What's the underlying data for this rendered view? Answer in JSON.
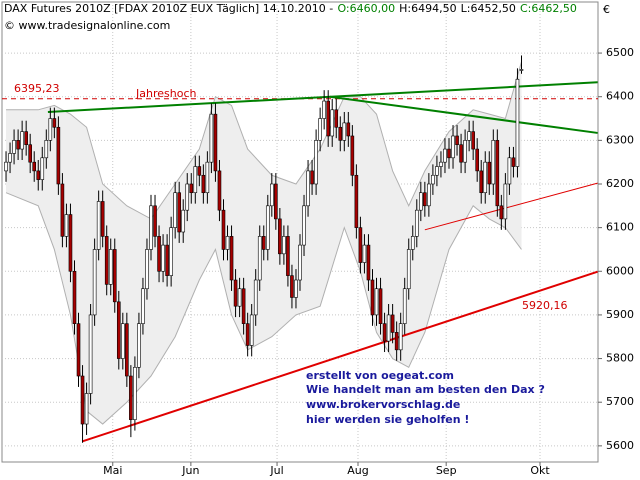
{
  "chart_data": {
    "type": "candlestick",
    "title": "DAX Futures 2010Z [FDAX 2010Z EUX  Täglich] 14.10.2010 -",
    "title_open": "O:6460,00",
    "title_high": "H:6494,50",
    "title_low": "L:6452,50",
    "title_close": "C:6462,50",
    "source": "© www.tradesignalonline.com",
    "currency": "€",
    "xlim": [
      -1,
      147
    ],
    "xticks": [
      {
        "value": 26.5,
        "label": "Mai"
      },
      {
        "value": 45.9,
        "label": "Jun"
      },
      {
        "value": 67.3,
        "label": "Jul"
      },
      {
        "value": 87.4,
        "label": "Aug"
      },
      {
        "value": 109.3,
        "label": "Sep"
      },
      {
        "value": 132.6,
        "label": "Okt"
      }
    ],
    "ylim": [
      5563,
      6617
    ],
    "yticks": [
      5600,
      5700,
      5800,
      5900,
      6000,
      6100,
      6200,
      6300,
      6400,
      6500
    ],
    "grid": true,
    "up_color": "#ffffff",
    "down_color": "#a50000",
    "open": [
      6230,
      6250,
      6270,
      6300,
      6280,
      6320,
      6290,
      6250,
      6230,
      6210,
      6260,
      6300,
      6350,
      6330,
      6200,
      6080,
      6130,
      6000,
      5880,
      5760,
      5650,
      5720,
      5900,
      6050,
      6160,
      6080,
      5970,
      6050,
      5930,
      5800,
      5880,
      5760,
      5660,
      5780,
      5880,
      5960,
      6050,
      6150,
      6080,
      6000,
      6060,
      5990,
      6100,
      6180,
      6090,
      6140,
      6200,
      6180,
      6240,
      6220,
      6180,
      6250,
      6360,
      6230,
      6140,
      6050,
      6080,
      5980,
      5920,
      5960,
      5880,
      5830,
      5900,
      5980,
      6080,
      6050,
      6150,
      6200,
      6120,
      6040,
      6080,
      5990,
      5940,
      5980,
      6060,
      6150,
      6230,
      6200,
      6300,
      6350,
      6390,
      6310,
      6370,
      6330,
      6300,
      6340,
      6310,
      6220,
      6100,
      6020,
      6060,
      5980,
      5900,
      5960,
      5880,
      5840,
      5900,
      5860,
      5820,
      5880,
      5960,
      6050,
      6080,
      6140,
      6180,
      6150,
      6200,
      6220,
      6240,
      6250,
      6280,
      6260,
      6310,
      6290,
      6250,
      6300,
      6320,
      6280,
      6230,
      6180,
      6250,
      6200,
      6300,
      6150,
      6120,
      6200,
      6260,
      6240,
      6460
    ],
    "high": [
      6275,
      6295,
      6325,
      6325,
      6345,
      6345,
      6315,
      6275,
      6255,
      6285,
      6325,
      6375,
      6375,
      6355,
      6225,
      6155,
      6155,
      6025,
      5905,
      5785,
      5745,
      5925,
      6075,
      6185,
      6185,
      6105,
      6075,
      6075,
      5955,
      5905,
      5905,
      5785,
      5805,
      5905,
      5985,
      6075,
      6175,
      6175,
      6105,
      6085,
      6085,
      6125,
      6205,
      6205,
      6165,
      6225,
      6225,
      6265,
      6265,
      6245,
      6275,
      6385,
      6385,
      6255,
      6165,
      6105,
      6105,
      6005,
      5985,
      5985,
      5905,
      5925,
      6005,
      6105,
      6105,
      6175,
      6225,
      6225,
      6145,
      6105,
      6105,
      6015,
      6005,
      6085,
      6175,
      6255,
      6255,
      6325,
      6375,
      6415,
      6415,
      6395,
      6395,
      6355,
      6365,
      6365,
      6335,
      6245,
      6125,
      6085,
      6085,
      6005,
      5985,
      5985,
      5905,
      5925,
      5925,
      5885,
      5905,
      5985,
      6075,
      6105,
      6165,
      6205,
      6205,
      6225,
      6245,
      6265,
      6275,
      6305,
      6305,
      6335,
      6335,
      6315,
      6325,
      6345,
      6345,
      6305,
      6255,
      6275,
      6275,
      6325,
      6325,
      6175,
      6225,
      6285,
      6285,
      6465,
      6494.5
    ],
    "low": [
      6205,
      6225,
      6245,
      6255,
      6255,
      6265,
      6225,
      6205,
      6185,
      6185,
      6235,
      6275,
      6305,
      6175,
      6055,
      6055,
      5975,
      5855,
      5735,
      5607,
      5625,
      5695,
      5875,
      6025,
      6055,
      5945,
      5945,
      5905,
      5775,
      5775,
      5735,
      5620,
      5635,
      5755,
      5855,
      5935,
      6025,
      6055,
      5975,
      5975,
      5965,
      5965,
      6075,
      6065,
      6065,
      6115,
      6155,
      6155,
      6195,
      6155,
      6155,
      6225,
      6205,
      6115,
      6025,
      6025,
      5955,
      5895,
      5895,
      5855,
      5805,
      5805,
      5875,
      5955,
      6025,
      6025,
      6125,
      6095,
      6015,
      6015,
      5965,
      5915,
      5915,
      5955,
      6035,
      6125,
      6175,
      6175,
      6275,
      6325,
      6285,
      6285,
      6305,
      6275,
      6275,
      6285,
      6195,
      6075,
      5995,
      5995,
      5955,
      5875,
      5875,
      5855,
      5815,
      5815,
      5835,
      5795,
      5795,
      5855,
      5935,
      6025,
      6055,
      6115,
      6125,
      6125,
      6175,
      6195,
      6215,
      6225,
      6235,
      6235,
      6265,
      6225,
      6225,
      6275,
      6255,
      6205,
      6155,
      6155,
      6175,
      6175,
      6125,
      6095,
      6095,
      6175,
      6215,
      6215,
      6452.5
    ],
    "close": [
      6250,
      6270,
      6300,
      6280,
      6320,
      6290,
      6250,
      6230,
      6210,
      6260,
      6300,
      6350,
      6330,
      6200,
      6080,
      6130,
      6000,
      5880,
      5760,
      5650,
      5720,
      5900,
      6050,
      6160,
      6080,
      5970,
      6050,
      5930,
      5800,
      5880,
      5760,
      5660,
      5780,
      5880,
      5960,
      6050,
      6150,
      6080,
      6000,
      6060,
      5990,
      6100,
      6180,
      6090,
      6140,
      6200,
      6180,
      6240,
      6220,
      6180,
      6250,
      6360,
      6230,
      6140,
      6050,
      6080,
      5980,
      5920,
      5960,
      5880,
      5830,
      5900,
      5980,
      6080,
      6050,
      6150,
      6200,
      6120,
      6040,
      6080,
      5990,
      5940,
      5980,
      6060,
      6150,
      6230,
      6200,
      6300,
      6350,
      6390,
      6310,
      6370,
      6330,
      6300,
      6340,
      6310,
      6220,
      6100,
      6020,
      6060,
      5980,
      5900,
      5960,
      5880,
      5840,
      5900,
      5860,
      5820,
      5880,
      5960,
      6050,
      6080,
      6140,
      6180,
      6150,
      6200,
      6220,
      6240,
      6250,
      6280,
      6260,
      6310,
      6290,
      6250,
      6300,
      6320,
      6280,
      6230,
      6180,
      6250,
      6200,
      6300,
      6150,
      6120,
      6200,
      6260,
      6240,
      6440,
      6462.5
    ],
    "bands": {
      "color": "#b0b0b0",
      "x": [
        0,
        8,
        12,
        16,
        20,
        24,
        30,
        36,
        42,
        48,
        52,
        56,
        60,
        66,
        72,
        78,
        84,
        88,
        92,
        96,
        100,
        104,
        110,
        116,
        120,
        124,
        128
      ],
      "upper": [
        6370,
        6370,
        6380,
        6360,
        6330,
        6200,
        6150,
        6120,
        6200,
        6280,
        6400,
        6380,
        6280,
        6220,
        6200,
        6280,
        6400,
        6400,
        6360,
        6230,
        6150,
        6230,
        6320,
        6370,
        6360,
        6350,
        6480
      ],
      "lower": [
        6180,
        6150,
        6050,
        5900,
        5680,
        5650,
        5700,
        5760,
        5850,
        5980,
        6050,
        5900,
        5820,
        5850,
        5900,
        5920,
        6100,
        6000,
        5860,
        5800,
        5780,
        5860,
        6050,
        6150,
        6120,
        6100,
        6050
      ]
    },
    "trendlines": [
      {
        "color": "#008000",
        "x": [
          10.4,
          146.9
        ],
        "y": [
          6365,
          6433
        ]
      },
      {
        "color": "#008000",
        "x": [
          80.4,
          146.9
        ],
        "y": [
          6400,
          6317
        ]
      },
      {
        "color": "#e00000",
        "x": [
          18.9,
          146.9
        ],
        "y": [
          5610,
          5999
        ]
      },
      {
        "color": "#e00000",
        "x": [
          104,
          146.9
        ],
        "y": [
          6095,
          6202
        ]
      }
    ],
    "hline": {
      "value": 6395.23,
      "label": "6395,23",
      "note": "Jahreshoch",
      "color": "#d00000"
    },
    "line_label": "5920,16",
    "annotation": [
      "erstellt von oegeat.com",
      "Wie handelt man am besten den Dax ?",
      "www.brokervorschlag.de",
      "hier werden sie geholfen !"
    ]
  }
}
